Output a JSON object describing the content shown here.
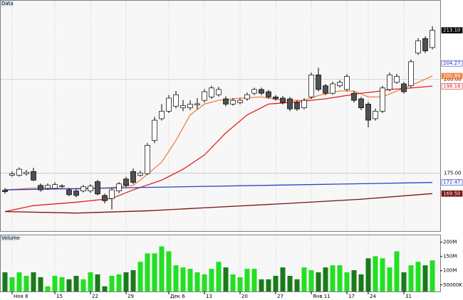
{
  "chart_data": [
    {
      "type": "candlestick",
      "title": "Data",
      "categories": [
        null,
        "Ноя 8",
        null,
        null,
        null,
        null,
        null,
        "15",
        null,
        null,
        null,
        null,
        "22",
        null,
        null,
        null,
        null,
        "29",
        null,
        null,
        null,
        null,
        null,
        "Дек 6",
        null,
        null,
        null,
        null,
        "13",
        null,
        null,
        null,
        null,
        "20",
        null,
        null,
        null,
        null,
        "27",
        null,
        null,
        null,
        null,
        "Янв 11",
        null,
        null,
        null,
        null,
        "17",
        null,
        null,
        "24",
        null,
        null,
        null,
        null,
        "31",
        null,
        null,
        null,
        null
      ],
      "open": [
        170.4,
        174.4,
        174.4,
        174.8,
        175.4,
        171.7,
        170.9,
        170.9,
        171.4,
        170.5,
        170.2,
        170.2,
        170.2,
        172.7,
        169.0,
        168.2,
        170.2,
        173.4,
        175.4,
        174.4,
        174.8,
        183.7,
        189.5,
        191.5,
        192.8,
        192.4,
        192.4,
        193.2,
        194.4,
        195.3,
        195.9,
        194.8,
        193.4,
        193.8,
        194.8,
        196.3,
        197.3,
        196.7,
        195.3,
        195.0,
        194.8,
        193.8,
        192.4,
        195.3,
        201.2,
        198.3,
        196.3,
        198.3,
        197.3,
        196.3,
        194.8,
        193.4,
        189.5,
        191.5,
        197.3,
        199.2,
        198.8,
        198.3,
        207.0,
        210.9,
        208.5
      ],
      "high": [
        171.0,
        175.5,
        176.5,
        175.8,
        176.4,
        172.2,
        172.2,
        172.5,
        172.0,
        171.0,
        170.6,
        171.8,
        172.0,
        173.2,
        169.5,
        171.0,
        172.6,
        174.0,
        176.2,
        175.6,
        183.0,
        190.0,
        193.4,
        195.8,
        196.9,
        194.5,
        194.4,
        195.0,
        197.4,
        198.3,
        198.0,
        195.5,
        195.0,
        195.0,
        196.5,
        197.8,
        197.8,
        197.2,
        195.8,
        195.6,
        195.3,
        194.4,
        195.0,
        201.8,
        203.1,
        198.8,
        199.4,
        199.8,
        201.4,
        196.9,
        195.3,
        194.0,
        192.2,
        198.3,
        201.8,
        201.5,
        199.3,
        205.3,
        211.0,
        211.5,
        214.2
      ],
      "low": [
        169.5,
        174.0,
        174.0,
        174.3,
        172.8,
        170.0,
        170.5,
        170.6,
        171.0,
        168.8,
        168.5,
        169.8,
        169.7,
        169.0,
        166.9,
        165.3,
        169.6,
        171.2,
        172.0,
        174.0,
        174.5,
        183.0,
        189.0,
        191.0,
        192.3,
        191.5,
        191.8,
        192.0,
        193.8,
        194.8,
        195.4,
        192.8,
        193.0,
        193.3,
        194.3,
        195.8,
        195.8,
        194.8,
        194.3,
        193.3,
        191.5,
        191.6,
        192.0,
        194.8,
        196.8,
        195.8,
        195.9,
        197.8,
        196.8,
        193.8,
        191.8,
        187.2,
        189.0,
        191.0,
        196.8,
        198.8,
        196.2,
        197.8,
        206.5,
        207.0,
        208.0
      ],
      "close": [
        170.0,
        174.8,
        176.0,
        175.2,
        173.1,
        170.5,
        171.7,
        171.9,
        171.6,
        169.2,
        169.0,
        171.3,
        171.5,
        169.4,
        167.6,
        170.5,
        172.1,
        171.7,
        172.5,
        175.0,
        182.4,
        189.1,
        191.5,
        195.0,
        195.9,
        193.0,
        193.4,
        193.5,
        196.7,
        197.7,
        197.3,
        193.4,
        194.4,
        194.4,
        195.9,
        197.3,
        196.3,
        195.3,
        194.8,
        193.8,
        192.1,
        192.1,
        194.4,
        201.2,
        197.3,
        196.3,
        198.8,
        199.2,
        200.8,
        194.4,
        192.4,
        189.1,
        191.5,
        197.7,
        201.2,
        200.8,
        196.7,
        204.7,
        210.3,
        207.6,
        213.1
      ],
      "up_color": "#ffffff",
      "down_color": "#505050",
      "lines": [
        {
          "color": "#f08040",
          "x": [
            0,
            5,
            10,
            15,
            18,
            19,
            22,
            24,
            26,
            28,
            30,
            33,
            36,
            39,
            42,
            44,
            47,
            49,
            51,
            53,
            56,
            58,
            60
          ],
          "values": [
            170.5,
            171.1,
            170.7,
            171.1,
            171.7,
            173.1,
            177.9,
            183.7,
            190.5,
            193.4,
            194.4,
            195.0,
            195.3,
            194.4,
            194.4,
            195.7,
            196.9,
            196.9,
            195.3,
            195.3,
            197.7,
            199.2,
            200.9
          ]
        },
        {
          "color": "#e02020",
          "x": [
            0,
            4,
            10,
            15,
            18,
            22,
            25,
            28,
            31,
            34,
            37,
            41,
            45,
            48,
            50,
            52,
            54,
            57,
            60
          ],
          "values": [
            164.7,
            166.3,
            167.2,
            168.2,
            170.5,
            173.1,
            176.0,
            179.8,
            185.7,
            190.5,
            193.4,
            194.0,
            194.8,
            195.7,
            196.3,
            196.7,
            197.3,
            197.7,
            198.2
          ]
        },
        {
          "color": "#7a1010",
          "x": [
            0,
            10,
            20,
            30,
            40,
            50,
            60
          ],
          "values": [
            164.7,
            164.3,
            164.9,
            165.9,
            166.9,
            168.0,
            169.5
          ]
        },
        {
          "color": "#3040c0",
          "x": [
            0,
            60
          ],
          "values": [
            170.5,
            172.47
          ]
        }
      ],
      "ylim": [
        159.5,
        221
      ],
      "yticks": [
        {
          "value": 175,
          "label": "175.00"
        },
        {
          "value": 200,
          "label": "200.00"
        }
      ],
      "price_markers": [
        {
          "value": 213.1,
          "label": "213.10",
          "color": "#000000",
          "filled": true
        },
        {
          "value": 204.27,
          "label": "204.27",
          "color": "#2030c0",
          "filled": false
        },
        {
          "value": 200.89,
          "label": "200.89",
          "color": "#f08040",
          "filled": true
        },
        {
          "value": 198.16,
          "label": "198.16",
          "color": "#e02020",
          "filled": false
        },
        {
          "value": 172.47,
          "label": "172.47",
          "color": "#2030c0",
          "filled": false
        },
        {
          "value": 169.5,
          "label": "169.50",
          "color": "#7a1010",
          "filled": true
        }
      ]
    },
    {
      "type": "bar",
      "title": "Volume",
      "values": [
        94.2,
        77.0,
        94.2,
        81.9,
        94.2,
        77.0,
        45.1,
        81.9,
        77.0,
        69.7,
        81.9,
        69.7,
        94.2,
        86.9,
        45.1,
        81.9,
        86.9,
        94.2,
        101.6,
        131.1,
        160.6,
        160.6,
        185.1,
        167.9,
        118.8,
        111.4,
        106.5,
        94.2,
        86.9,
        106.5,
        131.1,
        111.4,
        86.9,
        77.0,
        106.5,
        106.5,
        69.7,
        69.7,
        81.9,
        111.4,
        81.9,
        69.7,
        111.4,
        101.6,
        94.2,
        111.4,
        118.8,
        118.8,
        94.2,
        101.6,
        86.9,
        143.4,
        150.7,
        143.4,
        111.4,
        167.9,
        94.2,
        118.8,
        131.1,
        118.8,
        136.0
      ],
      "up_color": "#22e022",
      "down_color": "#1a7a1a",
      "ylim": [
        27,
        224
      ],
      "yticks": [
        {
          "value": 50,
          "label": "50000K"
        },
        {
          "value": 100,
          "label": "100M"
        },
        {
          "value": 150,
          "label": "150M"
        },
        {
          "value": 200,
          "label": "200M"
        }
      ]
    }
  ]
}
